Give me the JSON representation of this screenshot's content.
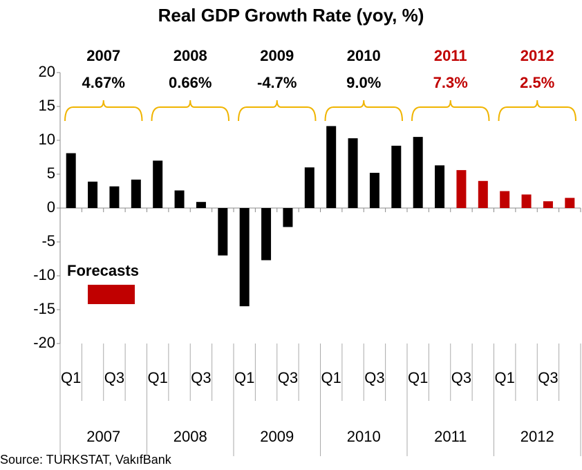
{
  "chart_data": {
    "type": "bar",
    "title": "Real GDP Growth Rate (yoy, %)",
    "categories": [
      "Q1",
      null,
      "Q3",
      null,
      "Q1",
      null,
      "Q3",
      null,
      "Q1",
      null,
      "Q3",
      null,
      "Q1",
      null,
      "Q3",
      null,
      "Q1",
      null,
      "Q3",
      null,
      "Q1",
      null,
      "Q3",
      null
    ],
    "year_groups": [
      "2007",
      "2008",
      "2009",
      "2010",
      "2011",
      "2012"
    ],
    "values": [
      8.1,
      3.9,
      3.2,
      4.2,
      7.0,
      2.6,
      0.9,
      -7.0,
      -14.5,
      -7.7,
      -2.8,
      6.0,
      12.1,
      10.3,
      5.2,
      9.2,
      10.5,
      6.3,
      5.6,
      4.0,
      2.5,
      2.0,
      1.0,
      1.5
    ],
    "colors": [
      "#000000",
      "#000000",
      "#000000",
      "#000000",
      "#000000",
      "#000000",
      "#000000",
      "#000000",
      "#000000",
      "#000000",
      "#000000",
      "#000000",
      "#000000",
      "#000000",
      "#000000",
      "#000000",
      "#000000",
      "#000000",
      "#c00000",
      "#c00000",
      "#c00000",
      "#c00000",
      "#c00000",
      "#c00000"
    ],
    "ylim": [
      -20,
      20
    ],
    "yticks": [
      -20,
      -15,
      -10,
      -5,
      0,
      5,
      10,
      15,
      20
    ],
    "annotations": [
      {
        "year": "2007",
        "growth": "4.67%",
        "color": "#000000"
      },
      {
        "year": "2008",
        "growth": "0.66%",
        "color": "#000000"
      },
      {
        "year": "2009",
        "growth": "-4.7%",
        "color": "#000000"
      },
      {
        "year": "2010",
        "growth": "9.0%",
        "color": "#000000"
      },
      {
        "year": "2011",
        "growth": "7.3%",
        "color": "#c00000"
      },
      {
        "year": "2012",
        "growth": "2.5%",
        "color": "#c00000"
      }
    ],
    "legend": {
      "label": "Forecasts",
      "color": "#c00000"
    },
    "brace_color": "#f0b400",
    "source": "Source:  TURKSTAT, VakıfBank"
  }
}
